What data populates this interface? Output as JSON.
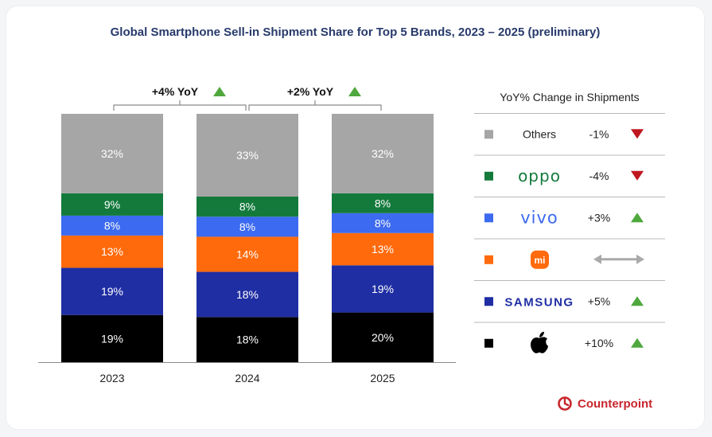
{
  "chart_data": {
    "type": "bar",
    "stacked": true,
    "title": "Global Smartphone Sell-in Shipment Share for Top 5 Brands, 2023 – 2025 (preliminary)",
    "categories": [
      "2023",
      "2024",
      "2025"
    ],
    "series": [
      {
        "name": "Apple",
        "color": "#000000",
        "label_color": "#ffffff",
        "values": [
          19,
          18,
          20
        ],
        "labels": [
          "19%",
          "18%",
          "20%"
        ]
      },
      {
        "name": "Samsung",
        "color": "#1f2ea3",
        "label_color": "#ffffff",
        "values": [
          19,
          18,
          19
        ],
        "labels": [
          "19%",
          "18%",
          "19%"
        ]
      },
      {
        "name": "Xiaomi",
        "color": "#ff6a0c",
        "label_color": "#ffffff",
        "values": [
          13,
          14,
          13
        ],
        "labels": [
          "13%",
          "14%",
          "13%"
        ]
      },
      {
        "name": "vivo",
        "color": "#3c6af0",
        "label_color": "#ffffff",
        "values": [
          8,
          8,
          8
        ],
        "labels": [
          "8%",
          "8%",
          "8%"
        ]
      },
      {
        "name": "OPPO",
        "color": "#137a3c",
        "label_color": "#ffffff",
        "values": [
          9,
          8,
          8
        ],
        "labels": [
          "9%",
          "8%",
          "8%"
        ]
      },
      {
        "name": "Others",
        "color": "#a6a6a6",
        "label_color": "#ffffff",
        "values": [
          32,
          33,
          32
        ],
        "labels": [
          "32%",
          "33%",
          "32%"
        ]
      }
    ],
    "ylim": [
      0,
      100
    ],
    "growth_annotations": [
      {
        "from": "2023",
        "to": "2024",
        "label": "+4% YoY",
        "direction": "up"
      },
      {
        "from": "2024",
        "to": "2025",
        "label": "+2% YoY",
        "direction": "up"
      }
    ],
    "legend": {
      "title": "YoY% Change in Shipments",
      "placement": "right",
      "items": [
        {
          "brand": "Others",
          "label": "Others",
          "color": "#a6a6a6",
          "change": "-1%",
          "indicator": "down"
        },
        {
          "brand": "OPPO",
          "label": "oppo",
          "color": "#137a3c",
          "change": "-4%",
          "indicator": "down"
        },
        {
          "brand": "vivo",
          "label": "vivo",
          "color": "#3c6af0",
          "change": "+3%",
          "indicator": "up"
        },
        {
          "brand": "Xiaomi",
          "label": "mi",
          "color": "#ff6a0c",
          "change": "",
          "indicator": "flat"
        },
        {
          "brand": "Samsung",
          "label": "SAMSUNG",
          "color": "#1f2ea3",
          "change": "+5%",
          "indicator": "up"
        },
        {
          "brand": "Apple",
          "label": "",
          "color": "#000000",
          "change": "+10%",
          "indicator": "up"
        }
      ]
    },
    "colors": {
      "up": "#4fa83d",
      "down": "#c0171f",
      "flat": "#a9a9a9",
      "title": "#273a6b"
    }
  },
  "branding": {
    "text": "Counterpoint",
    "color": "#c8262d"
  }
}
